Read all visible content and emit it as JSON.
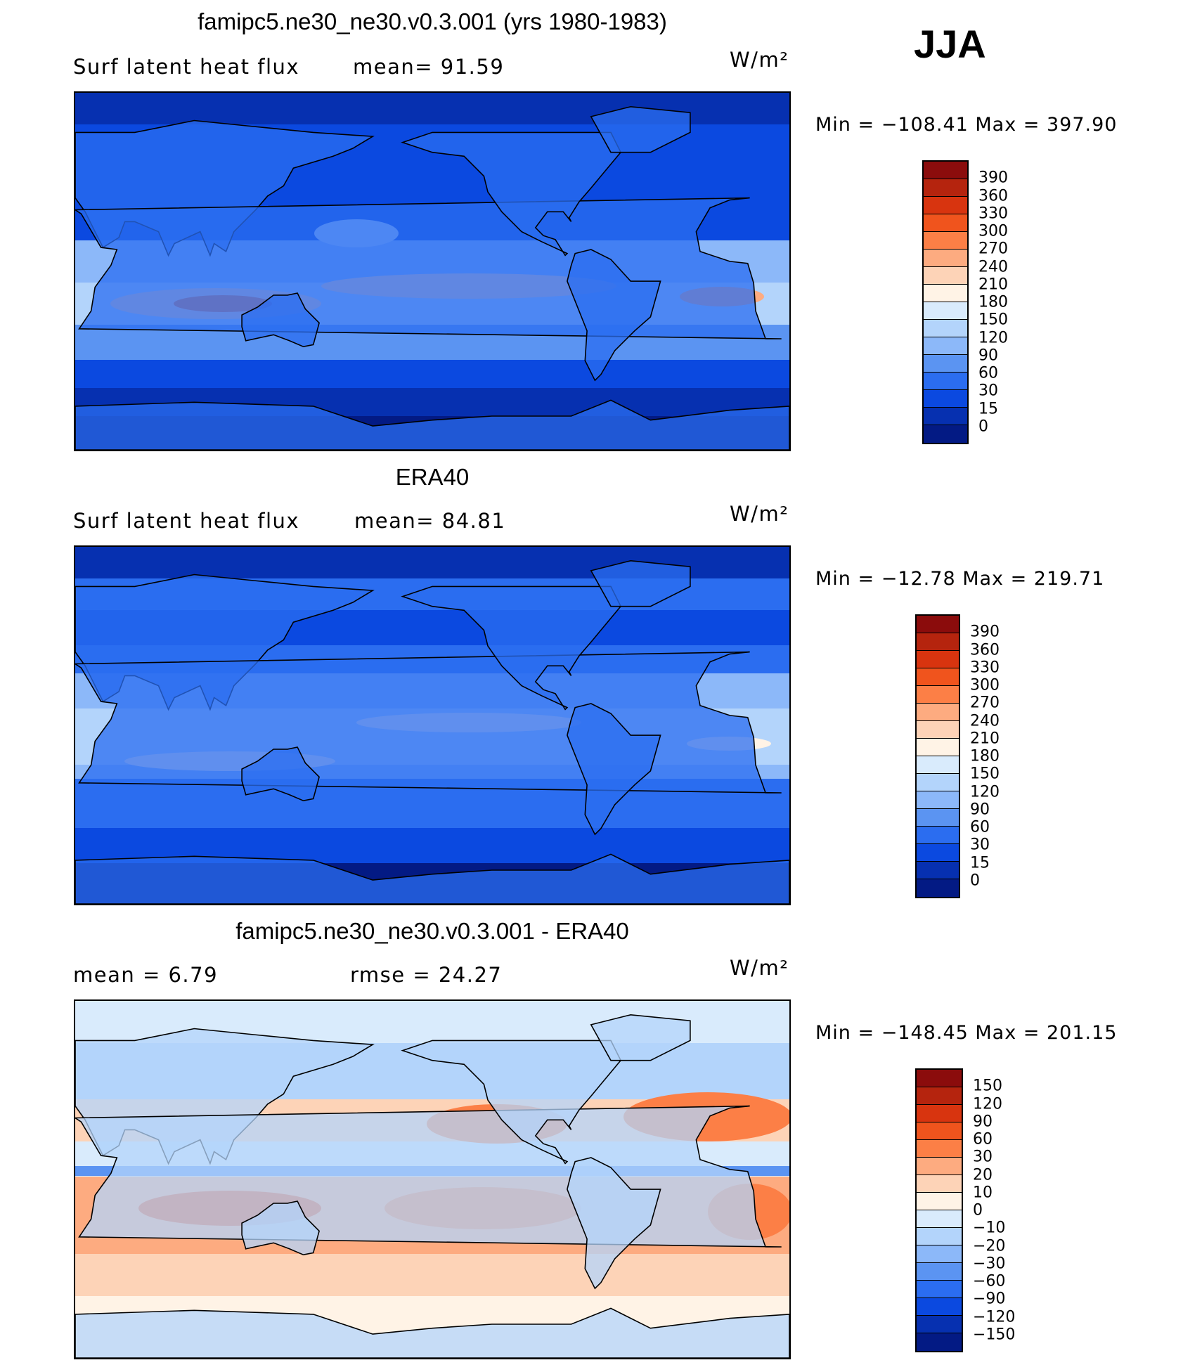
{
  "season": "JJA",
  "panels": [
    {
      "title": "famipc5.ne30_ne30.v0.3.001 (yrs 1980-1983)",
      "left_label": "Surf  latent  heat  flux",
      "mid_label": "mean=   91.59",
      "units": "W/m²",
      "minmax": "Min  =  −108.41  Max  =  397.90",
      "field": "model",
      "legend": {
        "colors": [
          "#8b0c0c",
          "#b5240e",
          "#d8340f",
          "#f0541d",
          "#fc7f46",
          "#fdab80",
          "#fdd3b7",
          "#fff3e6",
          "#d9ebfc",
          "#b3d4fb",
          "#8cb8f9",
          "#5b94f2",
          "#2b6df0",
          "#0b49e0",
          "#0630b0",
          "#031a84"
        ],
        "ticks": [
          "390",
          "360",
          "330",
          "300",
          "270",
          "240",
          "210",
          "180",
          "150",
          "120",
          "90",
          "60",
          "30",
          "15",
          "0"
        ]
      }
    },
    {
      "title": "ERA40",
      "left_label": "Surf  latent  heat  flux",
      "mid_label": "mean=   84.81",
      "units": "W/m²",
      "minmax": "Min  =  −12.78  Max  =  219.71",
      "field": "obs",
      "legend": {
        "colors": [
          "#8b0c0c",
          "#b5240e",
          "#d8340f",
          "#f0541d",
          "#fc7f46",
          "#fdab80",
          "#fdd3b7",
          "#fff3e6",
          "#d9ebfc",
          "#b3d4fb",
          "#8cb8f9",
          "#5b94f2",
          "#2b6df0",
          "#0b49e0",
          "#0630b0",
          "#031a84"
        ],
        "ticks": [
          "390",
          "360",
          "330",
          "300",
          "270",
          "240",
          "210",
          "180",
          "150",
          "120",
          "90",
          "60",
          "30",
          "15",
          "0"
        ]
      }
    },
    {
      "title": "famipc5.ne30_ne30.v0.3.001 - ERA40",
      "left_label": "mean  =      6.79",
      "mid_label": "rmse  =    24.27",
      "units": "W/m²",
      "minmax": "Min  =  −148.45  Max  =  201.15",
      "field": "diff",
      "legend": {
        "colors": [
          "#8b0c0c",
          "#b5240e",
          "#d8340f",
          "#f0541d",
          "#fc7f46",
          "#fdab80",
          "#fdd3b7",
          "#fff3e6",
          "#d9ebfc",
          "#b3d4fb",
          "#8cb8f9",
          "#5b94f2",
          "#2b6df0",
          "#0b49e0",
          "#0630b0",
          "#031a84"
        ],
        "ticks": [
          "150",
          "120",
          "90",
          "60",
          "30",
          "20",
          "10",
          "0",
          "−10",
          "−20",
          "−30",
          "−60",
          "−90",
          "−120",
          "−150"
        ]
      }
    }
  ]
}
